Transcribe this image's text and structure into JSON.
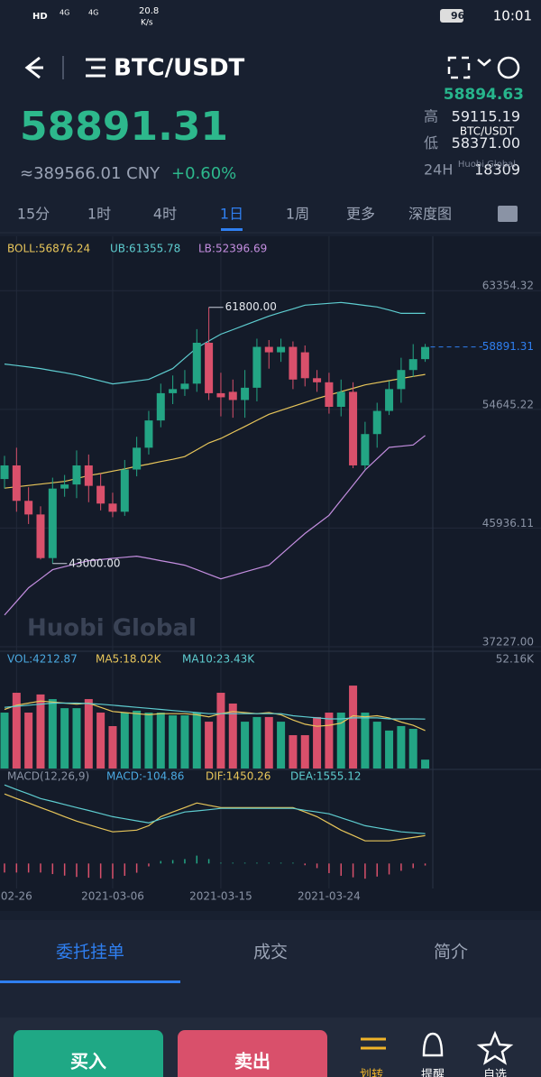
{
  "status_bar": {
    "network": "HD",
    "sig1": "4G",
    "sig2": "4G",
    "speed": "20.8",
    "speed_unit": "K/s",
    "battery": "96",
    "time": "10:01"
  },
  "header": {
    "symbol": "BTC/USDT"
  },
  "ticker": {
    "price": "58891.31",
    "cny": "≈389566.01 CNY",
    "change": "+0.60%",
    "index_price": "58894.63",
    "stats": [
      {
        "label": "高",
        "value": "59115.19"
      },
      {
        "label": "低",
        "value": "58371.00"
      },
      {
        "label": "24H",
        "value": "18309"
      }
    ],
    "overlay_symbol": "BTC/USDT",
    "overlay_brand": "Huobi Global"
  },
  "intervals": {
    "items": [
      "15分",
      "1时",
      "4时",
      "1日",
      "1周",
      "更多",
      "深度图"
    ],
    "active": 3
  },
  "kline": {
    "indicators": {
      "boll": "BOLL:56876.24",
      "ub": "UB:61355.78",
      "lb": "LB:52396.69"
    },
    "ylim": [
      36563,
      67011
    ],
    "yticks": [
      63354.32,
      54645.22,
      45936.11,
      {
        "value": 37227,
        "label": "37227.00"
      }
    ],
    "last_price": 58891.31,
    "max_marker": {
      "value": 61800,
      "label": "61800.00"
    },
    "min_marker": {
      "value": 43000,
      "label": "43000.00"
    },
    "watermark": "Huobi Global",
    "x_labels": [
      null,
      "02-26",
      null,
      null,
      null,
      null,
      null,
      null,
      null,
      "2021-03-06",
      null,
      null,
      null,
      null,
      null,
      null,
      null,
      null,
      "2021-03-15",
      null,
      null,
      null,
      null,
      null,
      null,
      null,
      null,
      "2021-03-24",
      null,
      null,
      null,
      null,
      null,
      null,
      null,
      null
    ],
    "candles": [
      {
        "open": 49200,
        "high": 50900,
        "low": 48500,
        "close": 50200
      },
      {
        "open": 50200,
        "high": 51500,
        "low": 46800,
        "close": 47600
      },
      {
        "open": 47600,
        "high": 48600,
        "low": 45900,
        "close": 46600
      },
      {
        "open": 46600,
        "high": 47200,
        "low": 43300,
        "close": 43400
      },
      {
        "open": 43400,
        "high": 49300,
        "low": 43000,
        "close": 48500
      },
      {
        "open": 48500,
        "high": 49500,
        "low": 47900,
        "close": 48800
      },
      {
        "open": 48800,
        "high": 51300,
        "low": 47800,
        "close": 50200
      },
      {
        "open": 50200,
        "high": 51000,
        "low": 47500,
        "close": 48700
      },
      {
        "open": 48700,
        "high": 49600,
        "low": 46900,
        "close": 47400
      },
      {
        "open": 47400,
        "high": 48200,
        "low": 46400,
        "close": 46800
      },
      {
        "open": 46800,
        "high": 50600,
        "low": 46500,
        "close": 49900
      },
      {
        "open": 49900,
        "high": 52300,
        "low": 49400,
        "close": 51500
      },
      {
        "open": 51500,
        "high": 54200,
        "low": 51000,
        "close": 53500
      },
      {
        "open": 53500,
        "high": 56200,
        "low": 53000,
        "close": 55500
      },
      {
        "open": 55500,
        "high": 56800,
        "low": 54700,
        "close": 55800
      },
      {
        "open": 55800,
        "high": 57200,
        "low": 55300,
        "close": 56200
      },
      {
        "open": 56200,
        "high": 60200,
        "low": 55600,
        "close": 59200
      },
      {
        "open": 59200,
        "high": 61800,
        "low": 55000,
        "close": 55500
      },
      {
        "open": 55500,
        "high": 57000,
        "low": 53800,
        "close": 55200
      },
      {
        "open": 55600,
        "high": 56500,
        "low": 53700,
        "close": 55000
      },
      {
        "open": 55000,
        "high": 57200,
        "low": 53700,
        "close": 55900
      },
      {
        "open": 55900,
        "high": 59500,
        "low": 54900,
        "close": 58900
      },
      {
        "open": 58900,
        "high": 59400,
        "low": 57300,
        "close": 58500
      },
      {
        "open": 58500,
        "high": 59500,
        "low": 57800,
        "close": 58900
      },
      {
        "open": 58900,
        "high": 59300,
        "low": 55800,
        "close": 56500
      },
      {
        "open": 58500,
        "high": 59000,
        "low": 56000,
        "close": 56600
      },
      {
        "open": 56600,
        "high": 57200,
        "low": 55600,
        "close": 56300
      },
      {
        "open": 56300,
        "high": 57000,
        "low": 54000,
        "close": 54500
      },
      {
        "open": 54500,
        "high": 56500,
        "low": 53800,
        "close": 55600
      },
      {
        "open": 55600,
        "high": 56300,
        "low": 50000,
        "close": 50200
      },
      {
        "open": 50200,
        "high": 53400,
        "low": 49900,
        "close": 52500
      },
      {
        "open": 52500,
        "high": 54800,
        "low": 51500,
        "close": 54200
      },
      {
        "open": 54200,
        "high": 56400,
        "low": 53900,
        "close": 55800
      },
      {
        "open": 55800,
        "high": 58100,
        "low": 54800,
        "close": 57200
      },
      {
        "open": 57200,
        "high": 59100,
        "low": 56700,
        "close": 58000
      },
      {
        "open": 58000,
        "high": 59115.19,
        "low": 57800,
        "close": 58891.31
      }
    ],
    "boll": {
      "mid": [
        48530,
        48630,
        48730,
        48830,
        48930,
        49030,
        49230,
        49460,
        49600,
        49780,
        49950,
        50130,
        50300,
        50480,
        50650,
        50850,
        51350,
        51850,
        52180,
        52620,
        53060,
        53510,
        53950,
        54240,
        54530,
        54820,
        55110,
        55360,
        55610,
        55860,
        56110,
        56270,
        56420,
        56580,
        56730,
        56876.24
      ],
      "ub": [
        57640,
        57530,
        57420,
        57310,
        57150,
        57000,
        56840,
        56620,
        56400,
        56180,
        56290,
        56400,
        56510,
        56910,
        57310,
        58070,
        58830,
        59330,
        59830,
        60160,
        60500,
        60830,
        61160,
        61430,
        61690,
        61960,
        62030,
        62090,
        62160,
        62050,
        61940,
        61830,
        61600,
        61360,
        61360,
        61355.78
      ],
      "lb": [
        39220,
        40220,
        41220,
        41880,
        42550,
        42770,
        42990,
        43210,
        43290,
        43380,
        43460,
        43540,
        43380,
        43210,
        43050,
        42880,
        42550,
        42210,
        41880,
        42130,
        42380,
        42630,
        42880,
        43660,
        44430,
        45210,
        45870,
        46540,
        47650,
        48750,
        49860,
        50690,
        51520,
        51610,
        51700,
        52396.69
      ],
      "colors": {
        "mid": "#e8c65a",
        "ub": "#5ecdd0",
        "lb": "#c48ee0"
      }
    },
    "colors": {
      "up": "#23a584",
      "down": "#d9506b"
    }
  },
  "volume": {
    "labels": {
      "vol": "VOL:4212.87",
      "ma5": "MA5:18.02K",
      "ma10": "MA10:23.43K"
    },
    "ylim": [
      0,
      52160
    ],
    "yticks": [
      {
        "value": 52160,
        "label": "52.16K"
      }
    ],
    "values": [
      26500,
      35900,
      26500,
      35100,
      32900,
      28600,
      28600,
      32900,
      26500,
      20100,
      26500,
      27400,
      26500,
      26500,
      25200,
      25200,
      26500,
      22200,
      35900,
      30800,
      22200,
      24400,
      24400,
      22200,
      15800,
      15800,
      24400,
      26500,
      26500,
      39300,
      26500,
      22200,
      18000,
      20100,
      18800,
      4212.87
    ],
    "ma5": [
      28000,
      30000,
      31000,
      32000,
      31500,
      31000,
      30500,
      31000,
      29000,
      27000,
      26500,
      26000,
      25500,
      26000,
      26000,
      26000,
      25500,
      24500,
      26000,
      27000,
      26500,
      26000,
      26500,
      25500,
      23000,
      21000,
      20000,
      20500,
      21500,
      25000,
      24500,
      25000,
      24000,
      22000,
      20500,
      18020
    ],
    "ma10": [
      29000,
      29500,
      30000,
      30500,
      31000,
      31000,
      31000,
      30800,
      30500,
      30000,
      29500,
      29000,
      28500,
      28000,
      27500,
      27000,
      26500,
      26000,
      26000,
      26000,
      26000,
      26000,
      26000,
      26000,
      25000,
      24500,
      24000,
      23500,
      23500,
      24000,
      24000,
      24000,
      23500,
      23500,
      23500,
      23430
    ]
  },
  "macd": {
    "labels": {
      "name": "MACD(12,26,9)",
      "macd": "MACD:-104.86",
      "dif": "DIF:1450.26",
      "dea": "DEA:1555.12"
    },
    "ylim": [
      -1300,
      4100
    ],
    "dif": [
      3620,
      3380,
      3150,
      2910,
      2680,
      2440,
      2210,
      2020,
      1830,
      1650,
      1690,
      1740,
      1970,
      2440,
      2680,
      2910,
      3150,
      3030,
      2910,
      2910,
      2910,
      2910,
      2910,
      2910,
      2910,
      2680,
      2440,
      2090,
      1740,
      1460,
      1180,
      1180,
      1180,
      1270,
      1360,
      1450.26
    ],
    "dea": [
      4090,
      3850,
      3620,
      3380,
      3230,
      3070,
      2910,
      2760,
      2600,
      2440,
      2330,
      2220,
      2120,
      2310,
      2500,
      2680,
      2740,
      2800,
      2870,
      2870,
      2870,
      2870,
      2870,
      2870,
      2870,
      2770,
      2680,
      2590,
      2380,
      2180,
      1970,
      1860,
      1750,
      1650,
      1600,
      1555.12
    ],
    "hist": [
      -470,
      -470,
      -470,
      -470,
      -550,
      -630,
      -700,
      -740,
      -770,
      -790,
      -640,
      -480,
      -150,
      130,
      180,
      230,
      410,
      230,
      40,
      40,
      40,
      40,
      40,
      40,
      40,
      -90,
      -240,
      -500,
      -640,
      -720,
      -790,
      -680,
      -570,
      -380,
      -240,
      -104.86
    ]
  },
  "bottom_tabs": {
    "items": [
      "委托挂单",
      "成交",
      "简介"
    ],
    "active": 0
  },
  "actions": {
    "buy": "买入",
    "sell": "卖出",
    "nav": [
      "划转",
      "提醒",
      "自选"
    ]
  }
}
